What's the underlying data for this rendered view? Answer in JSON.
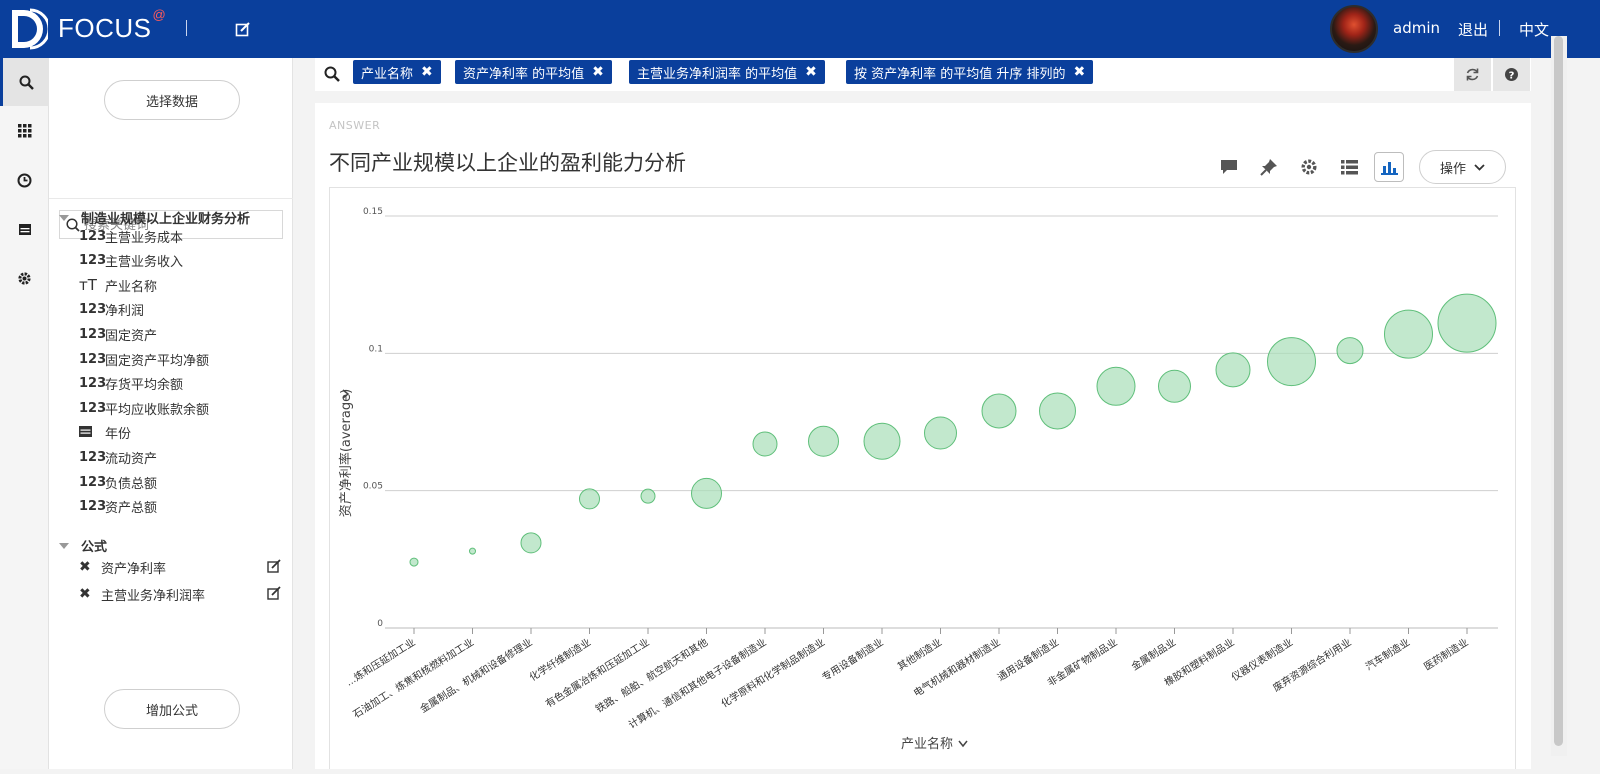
{
  "header": {
    "brand": "FOCUS",
    "brand_mark": "@",
    "user": "admin",
    "logout": "退出",
    "language": "中文"
  },
  "sidebar_rail": [
    "search-icon",
    "grid-icon",
    "clock-icon",
    "calendar-icon",
    "gear-icon"
  ],
  "panel": {
    "select_data": "选择数据",
    "search_placeholder": "搜索关键词",
    "table_name": "制造业规模以上企业财务分析",
    "fields": [
      {
        "type": "123",
        "name": "主营业务成本"
      },
      {
        "type": "123",
        "name": "主营业务收入"
      },
      {
        "type": "T",
        "name": "产业名称"
      },
      {
        "type": "123",
        "name": "净利润"
      },
      {
        "type": "123",
        "name": "固定资产"
      },
      {
        "type": "123",
        "name": "固定资产平均净额"
      },
      {
        "type": "123",
        "name": "存货平均余额"
      },
      {
        "type": "123",
        "name": "平均应收账款余额"
      },
      {
        "type": "calendar",
        "name": "年份"
      },
      {
        "type": "123",
        "name": "流动资产"
      },
      {
        "type": "123",
        "name": "负债总额"
      },
      {
        "type": "123",
        "name": "资产总额"
      }
    ],
    "formula_header": "公式",
    "formulas": [
      "资产净利率",
      "主营业务净利润率"
    ],
    "add_formula": "增加公式"
  },
  "query": {
    "chips": [
      "产业名称",
      "资产净利率 的平均值",
      "主营业务净利润率 的平均值",
      "按 资产净利率 的平均值 升序 排列的"
    ]
  },
  "answer": {
    "label": "ANSWER",
    "title": "不同产业规模以上企业的盈利能力分析",
    "toolbar": [
      "comment-icon",
      "pin-icon",
      "settings-icon",
      "list-icon",
      "bar-chart-icon"
    ],
    "ops_label": "操作"
  },
  "chart_data": {
    "type": "scatter",
    "xlabel": "产业名称",
    "ylabel": "资产净利率(average)",
    "ylim": [
      0,
      0.15
    ],
    "yticks": [
      "0",
      "0.05",
      "0.1",
      "0.15"
    ],
    "grid": true,
    "bubble_color": "#a8deb8",
    "categories": [
      "...炼和压延加工业",
      "石油加工、炼焦和核燃料加工业",
      "金属制品、机械和设备修理业",
      "化学纤维制造业",
      "有色金属冶炼和压延加工业",
      "铁路、船舶、航空航天和其他",
      "计算机、通信和其他电子设备制造业",
      "化学原料和化学制品制造业",
      "专用设备制造业",
      "其他制造业",
      "电气机械和器材制造业",
      "通用设备制造业",
      "非金属矿物制品业",
      "金属制品业",
      "橡胶和塑料制品业",
      "仪器仪表制造业",
      "废弃资源综合利用业",
      "汽车制造业",
      "医药制造业"
    ],
    "values": [
      0.024,
      0.028,
      0.031,
      0.047,
      0.048,
      0.049,
      0.067,
      0.068,
      0.068,
      0.071,
      0.079,
      0.079,
      0.088,
      0.088,
      0.094,
      0.097,
      0.101,
      0.107,
      0.111
    ],
    "size": [
      4,
      3,
      10,
      10,
      7,
      15,
      12,
      15,
      18,
      16,
      17,
      18,
      19,
      16,
      17,
      24,
      13,
      24,
      29
    ]
  }
}
